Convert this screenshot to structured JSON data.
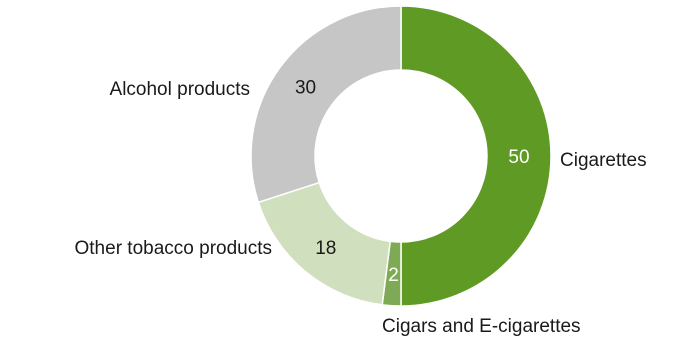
{
  "chart_data": {
    "type": "pie",
    "donut": true,
    "title": "",
    "slices": [
      {
        "name": "Cigarettes",
        "value": 50,
        "color": "#5f9a24",
        "value_color": "#ffffff"
      },
      {
        "name": "Cigars and E-cigarettes",
        "value": 2,
        "color": "#7faa55",
        "value_color": "#ffffff"
      },
      {
        "name": "Other tobacco products",
        "value": 18,
        "color": "#d0dfbe",
        "value_color": "#1a1a1a"
      },
      {
        "name": "Alcohol products",
        "value": 30,
        "color": "#c6c6c6",
        "value_color": "#1a1a1a"
      }
    ]
  }
}
